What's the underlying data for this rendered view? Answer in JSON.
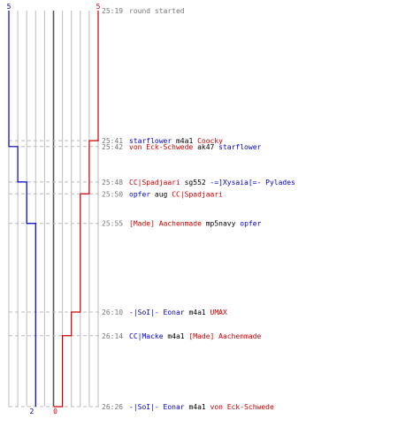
{
  "chart_data": {
    "type": "line",
    "title": "",
    "xlabel": "",
    "ylabel": "",
    "teams": [
      {
        "name": "blue",
        "color": "#0000cc",
        "start": 5,
        "end": 2
      },
      {
        "name": "red",
        "color": "#cc0000",
        "start": 5,
        "end": 0
      }
    ],
    "x_range": [
      0,
      10
    ],
    "center_value": 5,
    "events": [
      {
        "time": "25:19",
        "text": "round started",
        "killer": "",
        "killer_team": "",
        "weapon": "",
        "victim": "",
        "victim_team": "",
        "blue_alive": 5,
        "red_alive": 5
      },
      {
        "time": "25:41",
        "text": "",
        "killer": "starflower",
        "killer_team": "blue",
        "weapon": "m4a1",
        "victim": "Coocky",
        "victim_team": "red",
        "blue_alive": 5,
        "red_alive": 4
      },
      {
        "time": "25:42",
        "text": "",
        "killer": "von Eck-Schwede",
        "killer_team": "red",
        "weapon": "ak47",
        "victim": "starflower",
        "victim_team": "blue",
        "blue_alive": 4,
        "red_alive": 4
      },
      {
        "time": "25:48",
        "text": "",
        "killer": "CC|Spadjaari",
        "killer_team": "red",
        "weapon": "sg552",
        "victim": "-=]Xysaia[=- Pylades",
        "victim_team": "blue",
        "blue_alive": 3,
        "red_alive": 4
      },
      {
        "time": "25:50",
        "text": "",
        "killer": "opfer",
        "killer_team": "blue",
        "weapon": "aug",
        "victim": "CC|Spadjaari",
        "victim_team": "red",
        "blue_alive": 3,
        "red_alive": 3
      },
      {
        "time": "25:55",
        "text": "",
        "killer": "[Made] Aachenmade",
        "killer_team": "red",
        "weapon": "mp5navy",
        "victim": "opfer",
        "victim_team": "blue",
        "blue_alive": 2,
        "red_alive": 3
      },
      {
        "time": "26:10",
        "text": "",
        "killer": "-|SoI|- Eonar",
        "killer_team": "blue",
        "weapon": "m4a1",
        "victim": "UMAX",
        "victim_team": "red",
        "blue_alive": 2,
        "red_alive": 2
      },
      {
        "time": "26:14",
        "text": "",
        "killer": "CC|Macke",
        "killer_team": "blue",
        "weapon": "m4a1",
        "victim": "[Made] Aachenmade",
        "victim_team": "red",
        "blue_alive": 2,
        "red_alive": 1
      },
      {
        "time": "26:26",
        "text": "",
        "killer": "-|SoI|- Eonar",
        "killer_team": "blue",
        "weapon": "m4a1",
        "victim": "von Eck-Schwede",
        "victim_team": "red",
        "blue_alive": 2,
        "red_alive": 0
      }
    ]
  },
  "colors": {
    "grid": "#bdbdbd",
    "center": "#555555",
    "dash": "#bbbbbb",
    "time_text": "#777777",
    "weapon_text": "#000000",
    "note_text": "#777777"
  }
}
